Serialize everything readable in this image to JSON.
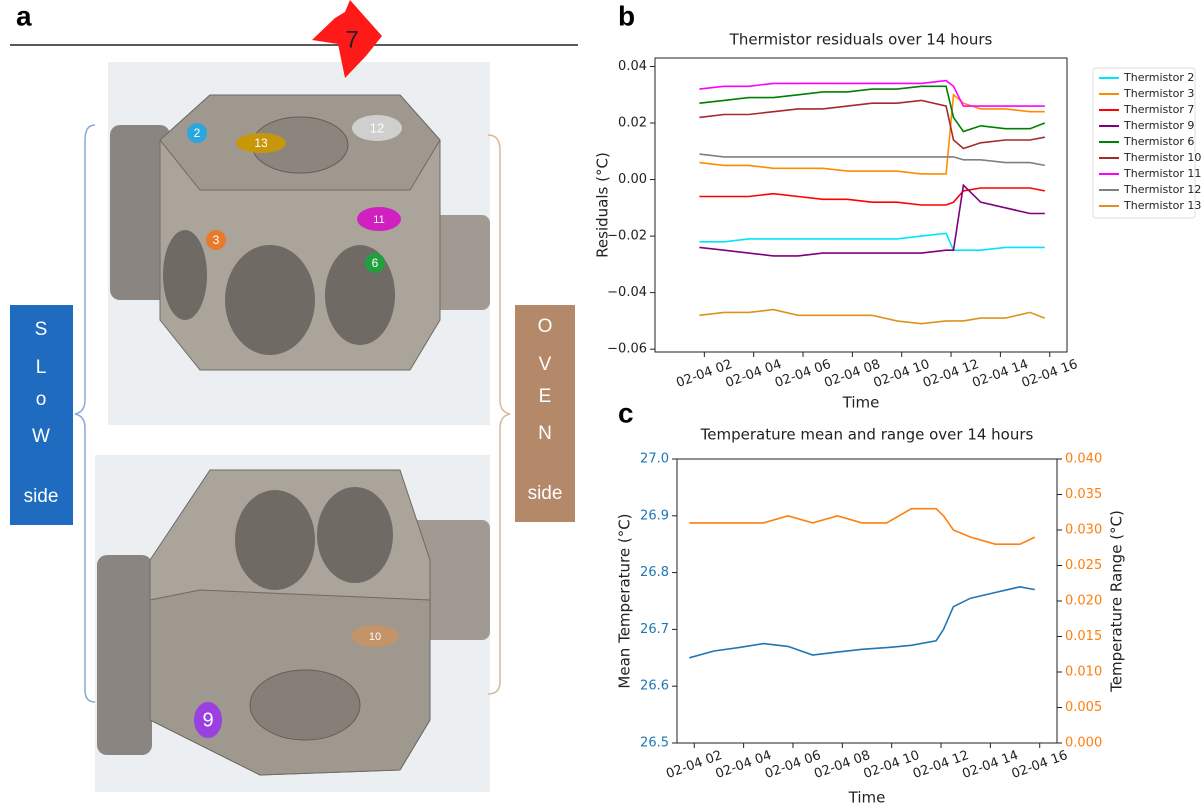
{
  "panel_labels": [
    "a",
    "b",
    "c"
  ],
  "panel_a": {
    "markers": [
      {
        "label": "7",
        "color": "#ff1a1a"
      },
      {
        "label": "2",
        "color": "#29a8e0"
      },
      {
        "label": "13",
        "color": "#c8960a"
      },
      {
        "label": "12",
        "color": "#cfcfcf"
      },
      {
        "label": "11",
        "color": "#d020c0"
      },
      {
        "label": "3",
        "color": "#e87a2a"
      },
      {
        "label": "6",
        "color": "#22a040"
      },
      {
        "label": "10",
        "color": "#c39468"
      },
      {
        "label": "9",
        "color": "#9b40e0"
      }
    ],
    "slow_side": [
      "S",
      "L",
      "o",
      "W",
      "side"
    ],
    "oven_side": [
      "O",
      "V",
      "E",
      "N",
      "side"
    ]
  },
  "chart_data": [
    {
      "type": "line",
      "title": "Thermistor residuals over 14 hours",
      "xlabel": "Time",
      "ylabel": "Residuals (°C)",
      "x": [
        1.8,
        2.8,
        3.8,
        4.8,
        5.8,
        6.8,
        7.8,
        8.8,
        9.8,
        10.8,
        11.8,
        12.1,
        12.5,
        13.2,
        14.2,
        15.2,
        15.8
      ],
      "xlim": [
        0,
        16.7
      ],
      "xticks": [
        {
          "value": 2,
          "label": "02-04 02"
        },
        {
          "value": 4,
          "label": "02-04 04"
        },
        {
          "value": 6,
          "label": "02-04 06"
        },
        {
          "value": 8,
          "label": "02-04 08"
        },
        {
          "value": 10,
          "label": "02-04 10"
        },
        {
          "value": 12,
          "label": "02-04 12"
        },
        {
          "value": 14,
          "label": "02-04 14"
        },
        {
          "value": 16,
          "label": "02-04 16"
        }
      ],
      "ylim": [
        -0.061,
        0.043
      ],
      "yticks": [
        {
          "value": -0.06,
          "label": "−0.06"
        },
        {
          "value": -0.04,
          "label": "−0.04"
        },
        {
          "value": -0.02,
          "label": "−0.02"
        },
        {
          "value": 0,
          "label": "0.00"
        },
        {
          "value": 0.02,
          "label": "0.02"
        },
        {
          "value": 0.04,
          "label": "0.04"
        }
      ],
      "legend": "outside-right",
      "series": [
        {
          "name": "Thermistor 2",
          "color": "#00e5ff",
          "values": [
            -0.022,
            -0.022,
            -0.021,
            -0.021,
            -0.021,
            -0.021,
            -0.021,
            -0.021,
            -0.021,
            -0.02,
            -0.019,
            -0.025,
            -0.025,
            -0.025,
            -0.024,
            -0.024,
            -0.024
          ]
        },
        {
          "name": "Thermistor 3",
          "color": "#ff8c00",
          "values": [
            0.006,
            0.005,
            0.005,
            0.004,
            0.004,
            0.004,
            0.003,
            0.003,
            0.003,
            0.002,
            0.002,
            0.03,
            0.027,
            0.025,
            0.025,
            0.024,
            0.024
          ]
        },
        {
          "name": "Thermistor 7",
          "color": "#ff0000",
          "values": [
            -0.006,
            -0.006,
            -0.006,
            -0.005,
            -0.006,
            -0.007,
            -0.007,
            -0.008,
            -0.008,
            -0.009,
            -0.009,
            -0.008,
            -0.004,
            -0.003,
            -0.003,
            -0.003,
            -0.004
          ]
        },
        {
          "name": "Thermistor 9",
          "color": "#800080",
          "values": [
            -0.024,
            -0.025,
            -0.026,
            -0.027,
            -0.027,
            -0.026,
            -0.026,
            -0.026,
            -0.026,
            -0.026,
            -0.025,
            -0.025,
            -0.002,
            -0.008,
            -0.01,
            -0.012,
            -0.012
          ]
        },
        {
          "name": "Thermistor 6",
          "color": "#008000",
          "values": [
            0.027,
            0.028,
            0.029,
            0.029,
            0.03,
            0.031,
            0.031,
            0.032,
            0.032,
            0.033,
            0.033,
            0.022,
            0.017,
            0.019,
            0.018,
            0.018,
            0.02
          ]
        },
        {
          "name": "Thermistor 10",
          "color": "#a52a2a",
          "values": [
            0.022,
            0.023,
            0.023,
            0.024,
            0.025,
            0.025,
            0.026,
            0.027,
            0.027,
            0.028,
            0.026,
            0.014,
            0.011,
            0.013,
            0.014,
            0.014,
            0.015
          ]
        },
        {
          "name": "Thermistor 11",
          "color": "#ff00ff",
          "values": [
            0.032,
            0.033,
            0.033,
            0.034,
            0.034,
            0.034,
            0.034,
            0.034,
            0.034,
            0.034,
            0.035,
            0.033,
            0.026,
            0.026,
            0.026,
            0.026,
            0.026
          ]
        },
        {
          "name": "Thermistor 12",
          "color": "#808080",
          "values": [
            0.009,
            0.008,
            0.008,
            0.008,
            0.008,
            0.008,
            0.008,
            0.008,
            0.008,
            0.008,
            0.008,
            0.008,
            0.007,
            0.007,
            0.006,
            0.006,
            0.005
          ]
        },
        {
          "name": "Thermistor 13",
          "color": "#e0901e",
          "values": [
            -0.048,
            -0.047,
            -0.047,
            -0.046,
            -0.048,
            -0.048,
            -0.048,
            -0.048,
            -0.05,
            -0.051,
            -0.05,
            -0.05,
            -0.05,
            -0.049,
            -0.049,
            -0.047,
            -0.049
          ]
        }
      ]
    },
    {
      "type": "line",
      "title": "Temperature mean and range over 14 hours",
      "xlabel": "Time",
      "ylabel": "Mean Temperature (°C)",
      "y2label": "Temperature Range (°C)",
      "x": [
        1.8,
        2.8,
        3.8,
        4.8,
        5.8,
        6.8,
        7.8,
        8.8,
        9.8,
        10.8,
        11.8,
        12.1,
        12.5,
        13.2,
        14.2,
        15.2,
        15.8
      ],
      "xlim": [
        1.3,
        16.7
      ],
      "xticks": [
        {
          "value": 2,
          "label": "02-04 02"
        },
        {
          "value": 4,
          "label": "02-04 04"
        },
        {
          "value": 6,
          "label": "02-04 06"
        },
        {
          "value": 8,
          "label": "02-04 08"
        },
        {
          "value": 10,
          "label": "02-04 10"
        },
        {
          "value": 12,
          "label": "02-04 12"
        },
        {
          "value": 14,
          "label": "02-04 14"
        },
        {
          "value": 16,
          "label": "02-04 16"
        }
      ],
      "ylim": [
        26.5,
        27.0
      ],
      "yticks": [
        26.5,
        26.6,
        26.7,
        26.8,
        26.9,
        {
          "value": 27.0,
          "label": "27.0"
        }
      ],
      "y2lim": [
        0,
        0.04
      ],
      "y2ticks": [
        {
          "value": 0,
          "label": "0.000"
        },
        {
          "value": 0.005,
          "label": "0.005"
        },
        {
          "value": 0.01,
          "label": "0.010"
        },
        {
          "value": 0.015,
          "label": "0.015"
        },
        {
          "value": 0.02,
          "label": "0.020"
        },
        {
          "value": 0.025,
          "label": "0.025"
        },
        {
          "value": 0.03,
          "label": "0.030"
        },
        {
          "value": 0.035,
          "label": "0.035"
        },
        {
          "value": 0.04,
          "label": "0.040"
        }
      ],
      "series": [
        {
          "color": "#1f77b4",
          "values": [
            26.65,
            26.662,
            26.668,
            26.675,
            26.67,
            26.655,
            26.66,
            26.665,
            26.668,
            26.672,
            26.68,
            26.7,
            26.74,
            26.755,
            26.765,
            26.775,
            26.77
          ]
        },
        {
          "color": "#ff7f0e",
          "axis": "y2",
          "values": [
            0.031,
            0.031,
            0.031,
            0.031,
            0.032,
            0.031,
            0.032,
            0.031,
            0.031,
            0.033,
            0.033,
            0.032,
            0.03,
            0.029,
            0.028,
            0.028,
            0.029
          ]
        }
      ]
    }
  ]
}
